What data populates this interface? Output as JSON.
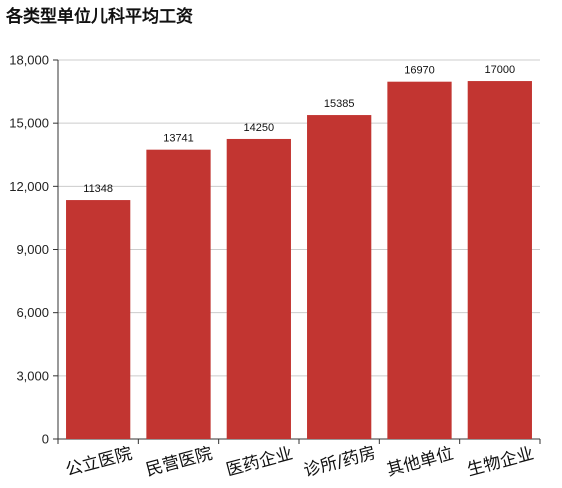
{
  "chart_data": {
    "type": "bar",
    "title": "各类型单位儿科平均工资",
    "categories": [
      "公立医院",
      "民营医院",
      "医药企业",
      "诊所/药房",
      "其他单位",
      "生物企业"
    ],
    "values": [
      11348,
      13741,
      14250,
      15385,
      16970,
      17000
    ],
    "data_labels": [
      "11348",
      "13741",
      "14250",
      "15385",
      "16970",
      "17000"
    ],
    "y_ticks": [
      0,
      3000,
      6000,
      9000,
      12000,
      15000,
      18000
    ],
    "y_tick_labels": [
      "0",
      "3,000",
      "6,000",
      "9,000",
      "12,000",
      "15,000",
      "18,000"
    ],
    "ylim": [
      0,
      18000
    ],
    "xlabel": "",
    "ylabel": "",
    "grid": true,
    "legend": false,
    "bar_color": "#c23531",
    "grid_color": "#cccccc",
    "axis_color": "#333333"
  }
}
